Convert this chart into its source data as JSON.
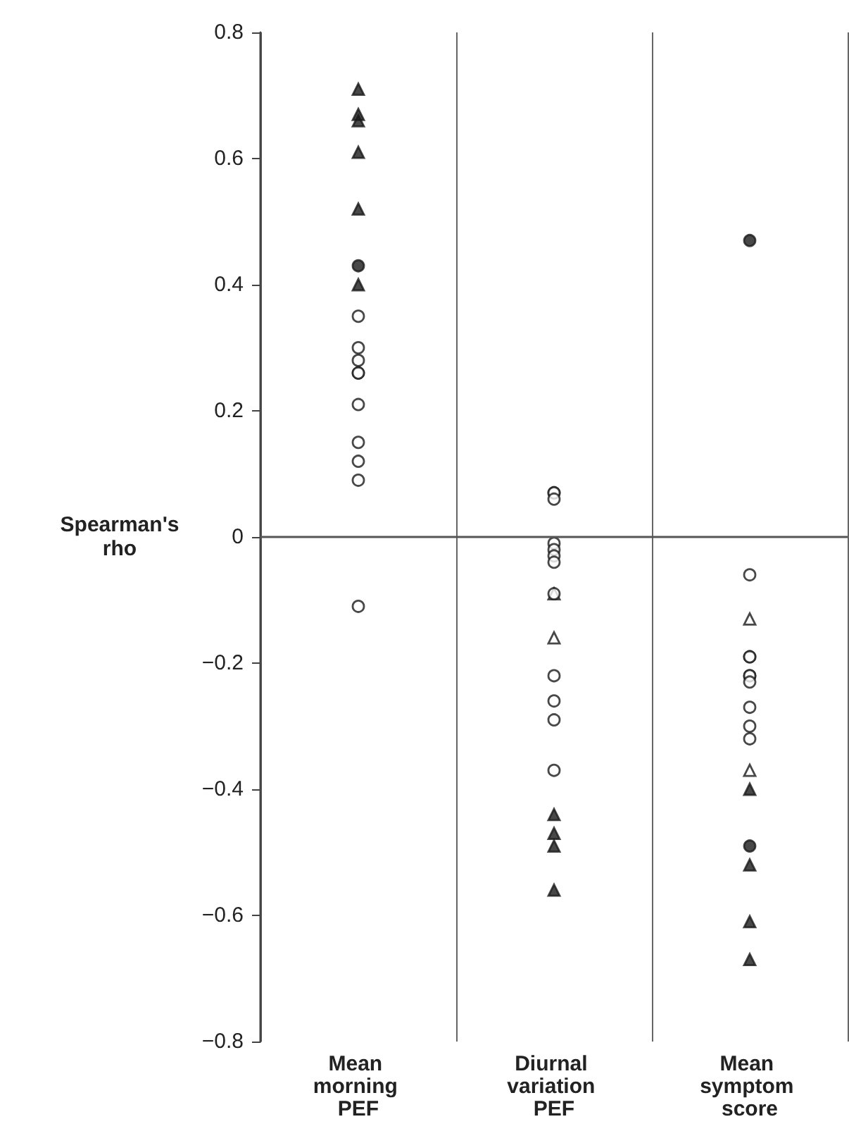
{
  "chart_data": {
    "type": "scatter",
    "ylabel": "Spearman's rho",
    "categories": [
      "Mean morning PEF",
      "Diurnal variation PEF",
      "Mean symptom score"
    ],
    "ylim": [
      -0.8,
      0.8
    ],
    "yticks": [
      {
        "value": -0.8,
        "label": "−0.8"
      },
      {
        "value": -0.6,
        "label": "−0.6"
      },
      {
        "value": -0.4,
        "label": "−0.4"
      },
      {
        "value": -0.2,
        "label": "−0.2"
      },
      0,
      0.2,
      0.4,
      0.6,
      0.8
    ],
    "grid": "x",
    "ref_lines": [
      {
        "axis": "y",
        "value": 0,
        "label": null
      }
    ],
    "series": [
      {
        "marker": "triangle",
        "color": "#1a1a1a",
        "x": [
          "Mean morning PEF",
          "Mean morning PEF",
          "Mean morning PEF",
          "Mean morning PEF",
          "Mean morning PEF",
          "Mean morning PEF",
          "Diurnal variation PEF",
          "Diurnal variation PEF",
          "Diurnal variation PEF",
          "Diurnal variation PEF",
          "Mean symptom score",
          "Mean symptom score",
          "Mean symptom score",
          "Mean symptom score"
        ],
        "values": [
          0.71,
          0.67,
          0.66,
          0.61,
          0.52,
          0.4,
          -0.44,
          -0.47,
          -0.49,
          -0.56,
          -0.4,
          -0.52,
          -0.61,
          -0.67
        ]
      },
      {
        "marker": "circle",
        "color": "#1a1a1a",
        "x": [
          "Mean morning PEF",
          "Mean symptom score",
          "Mean symptom score"
        ],
        "values": [
          0.43,
          0.47,
          -0.49
        ]
      },
      {
        "marker": "triangle",
        "color": "#ffffff",
        "x": [
          "Diurnal variation PEF",
          "Diurnal variation PEF",
          "Mean symptom score",
          "Mean symptom score"
        ],
        "values": [
          -0.09,
          -0.16,
          -0.13,
          -0.37
        ]
      },
      {
        "marker": "circle",
        "color": "#ffffff",
        "x": [
          "Mean morning PEF",
          "Mean morning PEF",
          "Mean morning PEF",
          "Mean morning PEF",
          "Mean morning PEF",
          "Mean morning PEF",
          "Mean morning PEF",
          "Mean morning PEF",
          "Mean morning PEF",
          "Mean morning PEF",
          "Diurnal variation PEF",
          "Diurnal variation PEF",
          "Diurnal variation PEF",
          "Diurnal variation PEF",
          "Diurnal variation PEF",
          "Diurnal variation PEF",
          "Diurnal variation PEF",
          "Diurnal variation PEF",
          "Diurnal variation PEF",
          "Diurnal variation PEF",
          "Diurnal variation PEF",
          "Diurnal variation PEF",
          "Mean symptom score",
          "Mean symptom score",
          "Mean symptom score",
          "Mean symptom score",
          "Mean symptom score",
          "Mean symptom score",
          "Mean symptom score",
          "Mean symptom score",
          "Mean symptom score"
        ],
        "values": [
          0.35,
          0.3,
          0.28,
          0.26,
          0.26,
          0.21,
          0.15,
          0.12,
          0.09,
          -0.11,
          0.07,
          0.07,
          0.06,
          -0.01,
          -0.02,
          -0.03,
          -0.04,
          -0.09,
          -0.22,
          -0.26,
          -0.29,
          -0.37,
          -0.06,
          -0.19,
          -0.19,
          -0.22,
          -0.22,
          -0.23,
          -0.27,
          -0.3,
          -0.32
        ]
      }
    ]
  }
}
